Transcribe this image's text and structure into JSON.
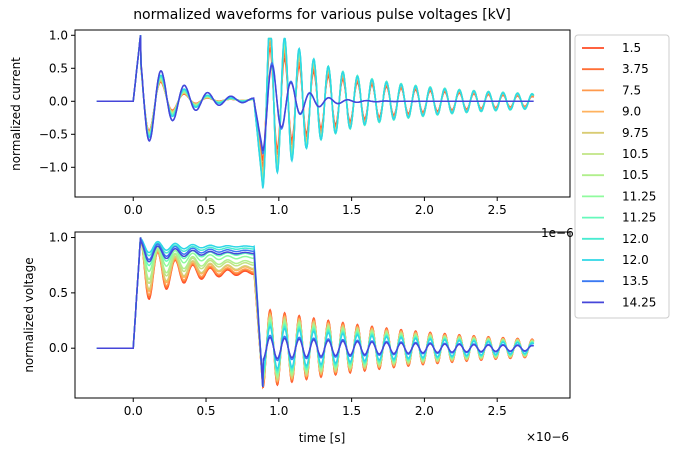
{
  "figure_title": "normalized waveforms for various pulse voltages [kV]",
  "legend": {
    "placement": "outside-right",
    "entries": [
      {
        "label": "1.5",
        "color": "#ff4b25"
      },
      {
        "label": "3.75",
        "color": "#ff6e35"
      },
      {
        "label": "7.5",
        "color": "#ff9a4d"
      },
      {
        "label": "9.0",
        "color": "#ffb25e"
      },
      {
        "label": "9.75",
        "color": "#d9cc73"
      },
      {
        "label": "10.5",
        "color": "#c0e485"
      },
      {
        "label": "10.5",
        "color": "#b0ef8c"
      },
      {
        "label": "11.25",
        "color": "#8ffb9e"
      },
      {
        "label": "11.25",
        "color": "#66f9bb"
      },
      {
        "label": "12.0",
        "color": "#49ecd1"
      },
      {
        "label": "12.0",
        "color": "#2fd7e6"
      },
      {
        "label": "13.5",
        "color": "#3a79f2"
      },
      {
        "label": "14.25",
        "color": "#4646d9"
      }
    ]
  },
  "chart_data": [
    {
      "type": "line",
      "title": "normalized waveforms for various pulse voltages [kV]",
      "xlabel": "",
      "ylabel": "normalized current",
      "x_multiplier": "1e−6",
      "xlim": [
        -0.4,
        3.0
      ],
      "ylim": [
        -1.45,
        1.08
      ],
      "xticks": [
        "0.0",
        "0.5",
        "1.0",
        "1.5",
        "2.0",
        "2.5"
      ],
      "yticks": [
        "−1.0",
        "−0.5",
        "0.0",
        "0.5",
        "1.0"
      ],
      "x_unit_scale": 1e-06,
      "model": {
        "t_rise": 0.0,
        "t_fall": 0.83,
        "t_end": 2.75,
        "t_start": -0.25
      },
      "series": [
        {
          "label": "1.5",
          "period": 0.1,
          "decay": 1.6,
          "tail_amp": 0.3,
          "fall_min": -0.9
        },
        {
          "label": "3.75",
          "period": 0.1,
          "decay": 1.6,
          "tail_amp": 0.28,
          "fall_min": -1.0
        },
        {
          "label": "7.5",
          "period": 0.1,
          "decay": 1.5,
          "tail_amp": 0.27,
          "fall_min": -1.1
        },
        {
          "label": "9.0",
          "period": 0.1,
          "decay": 1.5,
          "tail_amp": 0.27,
          "fall_min": -1.15
        },
        {
          "label": "9.75",
          "period": 0.1,
          "decay": 1.5,
          "tail_amp": 0.26,
          "fall_min": -1.2
        },
        {
          "label": "10.5",
          "period": 0.1,
          "decay": 1.4,
          "tail_amp": 0.25,
          "fall_min": -1.2
        },
        {
          "label": "10.5",
          "period": 0.1,
          "decay": 1.4,
          "tail_amp": 0.25,
          "fall_min": -1.25
        },
        {
          "label": "11.25",
          "period": 0.1,
          "decay": 1.3,
          "tail_amp": 0.22,
          "fall_min": -1.25
        },
        {
          "label": "11.25",
          "period": 0.1,
          "decay": 1.3,
          "tail_amp": 0.22,
          "fall_min": -1.3
        },
        {
          "label": "12.0",
          "period": 0.1,
          "decay": 1.2,
          "tail_amp": 0.2,
          "fall_min": -1.3
        },
        {
          "label": "12.0",
          "period": 0.1,
          "decay": 1.2,
          "tail_amp": 0.18,
          "fall_min": -1.32
        },
        {
          "label": "13.5",
          "period": 0.1,
          "decay": 1.0,
          "tail_amp": 0.05,
          "fall_min": -0.8
        },
        {
          "label": "14.25",
          "period": 0.1,
          "decay": 1.0,
          "tail_amp": 0.05,
          "fall_min": -0.75
        }
      ]
    },
    {
      "type": "line",
      "title": "",
      "xlabel": "time [s]",
      "ylabel": "normalized voltage",
      "x_multiplier": "×10−6",
      "xlim": [
        -0.4,
        3.0
      ],
      "ylim": [
        -0.45,
        1.05
      ],
      "xticks": [
        "0.0",
        "0.5",
        "1.0",
        "1.5",
        "2.0",
        "2.5"
      ],
      "yticks": [
        "0.0",
        "0.5",
        "1.0"
      ],
      "model": {
        "t_rise": 0.0,
        "t_fall": 0.83,
        "t_end": 2.75,
        "t_start": -0.25
      },
      "series": [
        {
          "label": "1.5",
          "plateau": 0.68,
          "ring": 0.3,
          "tail_amp": 0.36
        },
        {
          "label": "3.75",
          "plateau": 0.69,
          "ring": 0.29,
          "tail_amp": 0.35
        },
        {
          "label": "7.5",
          "plateau": 0.7,
          "ring": 0.28,
          "tail_amp": 0.33
        },
        {
          "label": "9.0",
          "plateau": 0.72,
          "ring": 0.26,
          "tail_amp": 0.32
        },
        {
          "label": "9.75",
          "plateau": 0.73,
          "ring": 0.25,
          "tail_amp": 0.31
        },
        {
          "label": "10.5",
          "plateau": 0.76,
          "ring": 0.22,
          "tail_amp": 0.29
        },
        {
          "label": "10.5",
          "plateau": 0.78,
          "ring": 0.2,
          "tail_amp": 0.28
        },
        {
          "label": "11.25",
          "plateau": 0.82,
          "ring": 0.16,
          "tail_amp": 0.26
        },
        {
          "label": "11.25",
          "plateau": 0.85,
          "ring": 0.13,
          "tail_amp": 0.24
        },
        {
          "label": "12.0",
          "plateau": 0.9,
          "ring": 0.08,
          "tail_amp": 0.22
        },
        {
          "label": "12.0",
          "plateau": 0.92,
          "ring": 0.07,
          "tail_amp": 0.2
        },
        {
          "label": "13.5",
          "plateau": 0.88,
          "ring": 0.1,
          "tail_amp": 0.12
        },
        {
          "label": "14.25",
          "plateau": 0.86,
          "ring": 0.1,
          "tail_amp": 0.1
        }
      ]
    }
  ]
}
